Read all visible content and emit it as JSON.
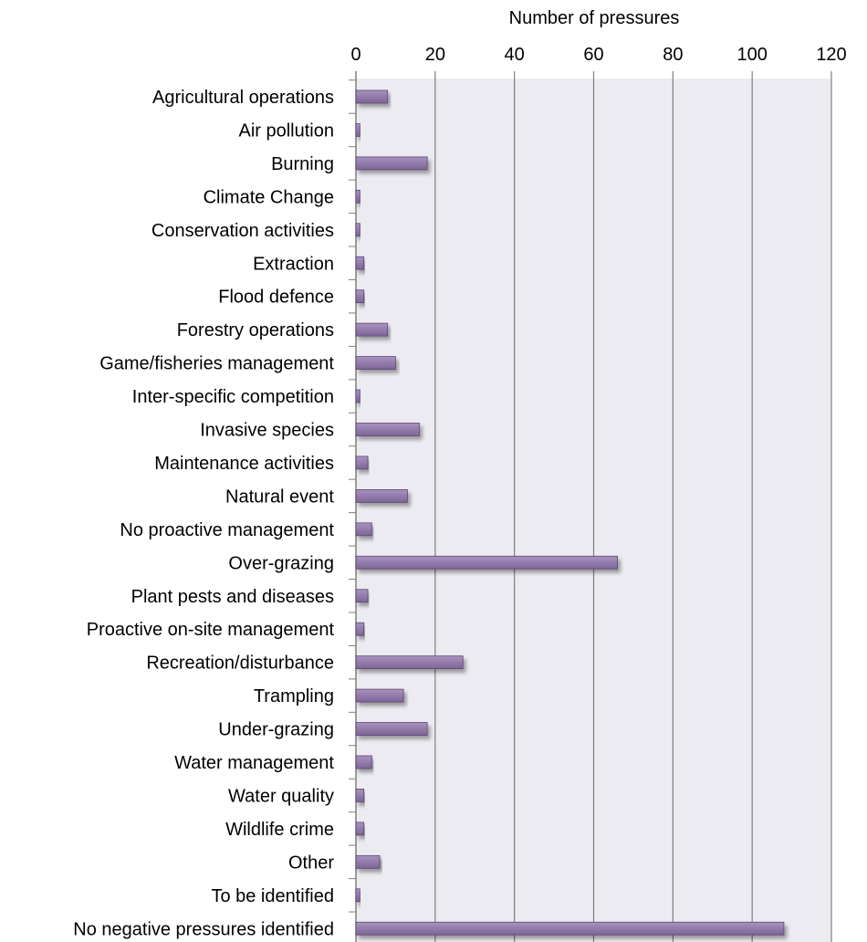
{
  "chart_data": {
    "type": "bar",
    "orientation": "horizontal",
    "title": "",
    "xlabel": "Number of pressures",
    "ylabel": "",
    "xlim": [
      0,
      120
    ],
    "ticks": [
      0,
      20,
      40,
      60,
      80,
      100,
      120
    ],
    "tick_labels": [
      "0",
      "20",
      "40",
      "60",
      "80",
      "100",
      "120"
    ],
    "grid": true,
    "x_axis_position": "top",
    "categories": [
      "Agricultural operations",
      "Air pollution",
      "Burning",
      "Climate Change",
      "Conservation activities",
      "Extraction",
      "Flood defence",
      "Forestry operations",
      "Game/fisheries management",
      "Inter-specific competition",
      "Invasive species",
      "Maintenance activities",
      "Natural event",
      "No proactive management",
      "Over-grazing",
      "Plant pests and diseases",
      "Proactive on-site management",
      "Recreation/disturbance",
      "Trampling",
      "Under-grazing",
      "Water management",
      "Water quality",
      "Wildlife crime",
      "Other",
      "To be identified",
      "No negative pressures identified"
    ],
    "values": [
      8,
      1,
      18,
      1,
      1,
      2,
      2,
      8,
      10,
      1,
      16,
      3,
      13,
      4,
      66,
      3,
      2,
      27,
      12,
      18,
      4,
      2,
      2,
      6,
      1,
      108
    ],
    "colors": {
      "bar": "#8e76a8",
      "bar_edge": "#5a4670",
      "plot_bg": "#ecebf1",
      "grid": "#7f7f7f"
    }
  }
}
